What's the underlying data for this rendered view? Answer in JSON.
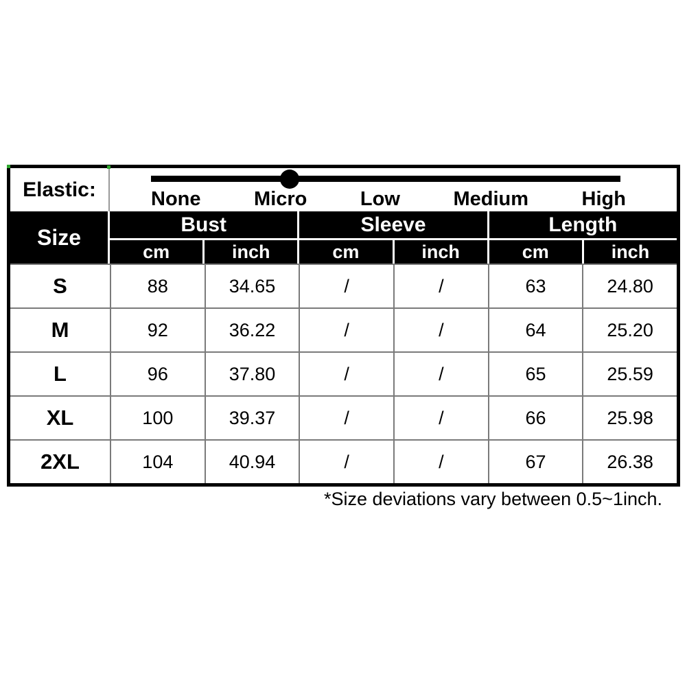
{
  "elastic": {
    "label": "Elastic:",
    "levels": [
      "None",
      "Micro",
      "Low",
      "Medium",
      "High"
    ],
    "selected_level": "Micro"
  },
  "table": {
    "size_header": "Size",
    "groups": [
      {
        "label": "Bust"
      },
      {
        "label": "Sleeve"
      },
      {
        "label": "Length"
      }
    ],
    "unit_headers": [
      "cm",
      "inch",
      "cm",
      "inch",
      "cm",
      "inch"
    ],
    "rows": [
      {
        "size": "S",
        "values": [
          "88",
          "34.65",
          "/",
          "/",
          "63",
          "24.80"
        ]
      },
      {
        "size": "M",
        "values": [
          "92",
          "36.22",
          "/",
          "/",
          "64",
          "25.20"
        ]
      },
      {
        "size": "L",
        "values": [
          "96",
          "37.80",
          "/",
          "/",
          "65",
          "25.59"
        ]
      },
      {
        "size": "XL",
        "values": [
          "100",
          "39.37",
          "/",
          "/",
          "66",
          "25.98"
        ]
      },
      {
        "size": "2XL",
        "values": [
          "104",
          "40.94",
          "/",
          "/",
          "67",
          "26.38"
        ]
      }
    ]
  },
  "footnote": "*Size deviations vary between 0.5~1inch.",
  "colors": {
    "header_bg": "#000000",
    "header_text": "#ffffff",
    "divider_gray": "#7a7a7a",
    "slider_bar": "#000000",
    "artifact_green": "#2ca52c"
  },
  "chart_data": {
    "type": "table",
    "title": "Size chart",
    "elastic_scale": {
      "levels": [
        "None",
        "Micro",
        "Low",
        "Medium",
        "High"
      ],
      "selected": "Micro"
    },
    "columns": [
      "Size",
      "Bust cm",
      "Bust inch",
      "Sleeve cm",
      "Sleeve inch",
      "Length cm",
      "Length inch"
    ],
    "rows": [
      [
        "S",
        88,
        34.65,
        null,
        null,
        63,
        24.8
      ],
      [
        "M",
        92,
        36.22,
        null,
        null,
        64,
        25.2
      ],
      [
        "L",
        96,
        37.8,
        null,
        null,
        65,
        25.59
      ],
      [
        "XL",
        100,
        39.37,
        null,
        null,
        66,
        25.98
      ],
      [
        "2XL",
        104,
        40.94,
        null,
        null,
        67,
        26.38
      ]
    ],
    "missing_value_symbol": "/",
    "note": "*Size deviations vary between 0.5~1inch."
  }
}
